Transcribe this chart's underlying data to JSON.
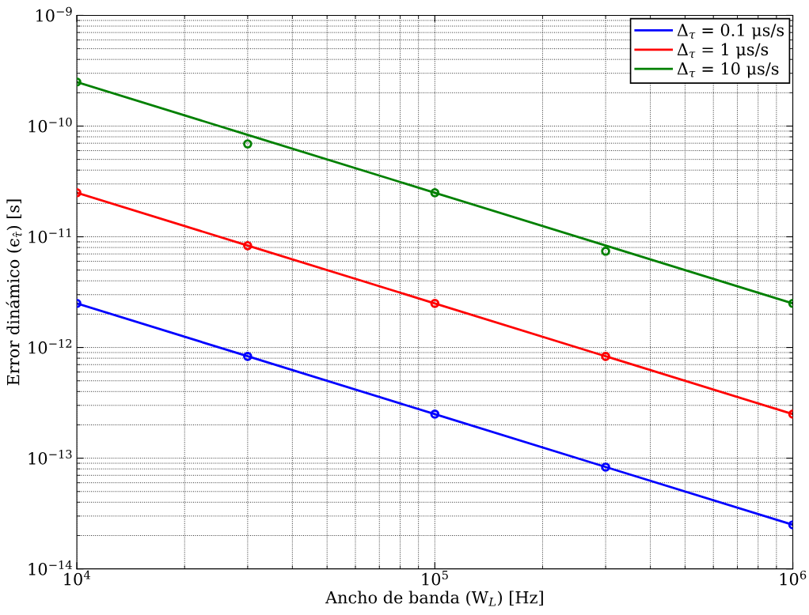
{
  "chart_data": {
    "type": "line",
    "xlabel": "Ancho de banda (W$_{L}$) [Hz]",
    "ylabel": "Error dinámico (ϵ$_{τ̂}$) [s]",
    "log": "xy",
    "grid": true,
    "legend": "top right",
    "marker": "none",
    "line_style": "solid",
    "xlim": [
      10000,
      1000000
    ],
    "xticks": [
      {
        "value": 10000,
        "label": "10$^{4}$"
      },
      {
        "value": 100000,
        "label": "10$^{5}$"
      },
      {
        "value": 1000000,
        "label": "10$^{6}$"
      }
    ],
    "ylim": [
      1e-14,
      1e-09
    ],
    "yticks": [
      {
        "value": 1e-14,
        "label": "10$^{−14}$"
      },
      {
        "value": 1e-13,
        "label": "10$^{−13}$"
      },
      {
        "value": 1e-12,
        "label": "10$^{−12}$"
      },
      {
        "value": 1e-11,
        "label": "10$^{−11}$"
      },
      {
        "value": 1e-10,
        "label": "10$^{−10}$"
      },
      {
        "value": 1e-09,
        "label": "10$^{−9}$"
      }
    ],
    "series": [
      {
        "name": "Δ$_{τ}$ = 0.1 μs/s",
        "color": "#0000ff",
        "x": [
          10000,
          30000,
          100000,
          300000,
          1000000
        ],
        "values": [
          2.5e-12,
          8.33e-13,
          2.5e-13,
          8.33e-14,
          2.5e-14
        ]
      },
      {
        "name": "Δ$_{τ}$ = 1 μs/s",
        "color": "#ff0000",
        "x": [
          10000,
          30000,
          100000,
          300000,
          1000000
        ],
        "values": [
          2.5e-11,
          8.33e-12,
          2.5e-12,
          8.33e-13,
          2.5e-13
        ]
      },
      {
        "name": "Δ$_{τ}$ = 10 μs/s",
        "color": "#008000",
        "x": [
          10000,
          30000,
          100000,
          300000,
          1000000
        ],
        "values": [
          2.5e-10,
          8.33e-11,
          2.5e-11,
          8.33e-12,
          2.5e-12
        ]
      },
      {
        "type": "scatter",
        "marker": "circle",
        "color": "#0000ff",
        "x": [
          10000,
          30000,
          100000,
          300000,
          1000000
        ],
        "values": [
          2.5e-12,
          8.3e-13,
          2.5e-13,
          8.3e-14,
          2.5e-14
        ]
      },
      {
        "type": "scatter",
        "marker": "circle",
        "color": "#ff0000",
        "x": [
          10000,
          30000,
          100000,
          300000,
          1000000
        ],
        "values": [
          2.5e-11,
          8.3e-12,
          2.5e-12,
          8.3e-13,
          2.5e-13
        ]
      },
      {
        "type": "scatter",
        "marker": "circle",
        "color": "#008000",
        "x": [
          10000,
          30000,
          100000,
          300000,
          1000000
        ],
        "values": [
          2.5e-10,
          6.9e-11,
          2.5e-11,
          7.4e-12,
          2.5e-12
        ]
      }
    ]
  }
}
